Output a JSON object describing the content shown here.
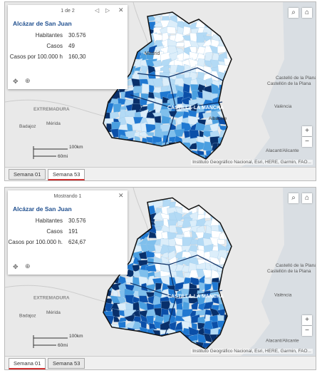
{
  "panels": [
    {
      "popup": {
        "pager": "1 de 2",
        "title": "Alcázar de San Juan",
        "rows": [
          {
            "label": "Habitantes",
            "value": "30.576"
          },
          {
            "label": "Casos",
            "value": "49"
          },
          {
            "label": "Casos por 100.000 h",
            "value": "160,30"
          }
        ]
      },
      "map_labels": [
        "Madrid",
        "EXTREMADURA",
        "Badajoz",
        "Mérida",
        "CASTILLA-LA MANCHA",
        "Albacete",
        "Castelló de la Plana/Castellón de la Plana",
        "València",
        "Alacant/Alicante"
      ],
      "scale": {
        "km": "100km",
        "mi": "60mi"
      },
      "attribution": "Instituto Geográfico Nacional, Esri, HERE, Garmin, FAO...",
      "tabs": [
        "Semana 01",
        "Semana 53"
      ],
      "active_tab": 1
    },
    {
      "popup": {
        "pager": "Mostrando 1",
        "title": "Alcázar de San Juan",
        "rows": [
          {
            "label": "Habitantes",
            "value": "30.576"
          },
          {
            "label": "Casos",
            "value": "191"
          },
          {
            "label": "Casos por 100.000 h.",
            "value": "624,67"
          }
        ]
      },
      "map_labels": [
        "EXTREMADURA",
        "Badajoz",
        "Mérida",
        "CASTILLA-LA MANCHA",
        "Castelló de la Plana/Castellón de la Plana",
        "València",
        "Alacant/Alicante"
      ],
      "scale": {
        "km": "100km",
        "mi": "60mi"
      },
      "attribution": "Instituto Geográfico Nacional, Esri, HERE, Garmin, FAO...",
      "tabs": [
        "Semana 01",
        "Semana 53"
      ],
      "active_tab": 0
    }
  ]
}
